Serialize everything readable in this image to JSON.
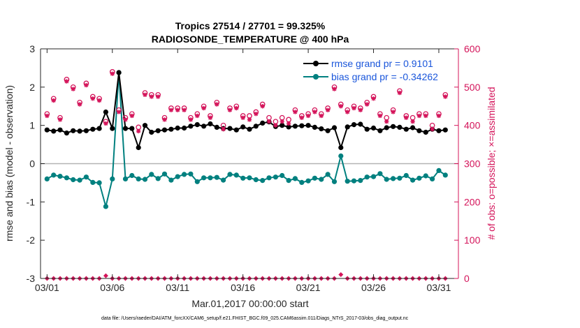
{
  "chart_data": {
    "type": "line",
    "title_line1": "Tropics 27514 / 27701 = 99.325%",
    "title_line2": "RADIOSONDE_TEMPERATURE @ 400 hPa",
    "xlabel": "Mar.01,2017 00:00:00 start",
    "ylabel_left": "rmse and bias (model - observation)",
    "ylabel_right": "# of obs: o=possible; ×=assimilated",
    "footer": "data file: /Users/raeder/DAI/ATM_forcXX/CAM6_setup/f.e21.FHIST_BGC.f09_025.CAM6assim.011/Diags_NTrS_2017-03/obs_diag_output.nc",
    "xlim": [
      0.5,
      32.5
    ],
    "ylim_left": [
      -3,
      3
    ],
    "ylim_right": [
      0,
      600
    ],
    "x_tick_values": [
      1,
      6,
      11,
      16,
      21,
      26,
      31
    ],
    "x_tick_labels": [
      "03/01",
      "03/06",
      "03/11",
      "03/16",
      "03/21",
      "03/26",
      "03/31"
    ],
    "y_left_ticks": [
      "3",
      "2",
      "1",
      "0",
      "-1",
      "-2",
      "-3"
    ],
    "y_left_tick_values": [
      3,
      2,
      1,
      0,
      -1,
      -2,
      -3
    ],
    "y_right_ticks": [
      "600",
      "500",
      "400",
      "300",
      "200",
      "100",
      "0"
    ],
    "y_right_tick_values": [
      600,
      500,
      400,
      300,
      200,
      100,
      0
    ],
    "x_step_days": 0.5,
    "colors": {
      "rmse": "#000000",
      "bias": "#00807f",
      "obs": "#d4145a",
      "right_axis": "#d4145a",
      "legend_text": "#1a56db",
      "zero_line": "#b3b3b3"
    },
    "legend": {
      "position": "top-right",
      "entries": [
        "rmse grand pr = 0.9101",
        "bias grand pr = -0.34262"
      ]
    },
    "series": [
      {
        "name": "rmse",
        "axis": "left",
        "values": [
          0.88,
          0.85,
          0.88,
          0.8,
          0.86,
          0.85,
          0.86,
          0.9,
          0.92,
          1.35,
          0.92,
          2.38,
          0.92,
          0.92,
          0.42,
          1.0,
          0.82,
          0.86,
          0.88,
          0.9,
          0.93,
          0.93,
          0.98,
          1.02,
          0.98,
          1.04,
          0.95,
          0.92,
          0.92,
          0.88,
          0.96,
          0.9,
          0.98,
          1.06,
          1.09,
          0.97,
          1.0,
          0.96,
          0.98,
          0.99,
          1.0,
          0.95,
          0.91,
          0.86,
          0.94,
          0.42,
          0.96,
          1.02,
          1.03,
          0.9,
          0.93,
          0.86,
          0.94,
          0.97,
          0.95,
          0.9,
          0.94,
          0.86,
          0.82,
          0.9,
          0.86,
          0.88
        ]
      },
      {
        "name": "bias",
        "axis": "left",
        "values": [
          -0.4,
          -0.3,
          -0.33,
          -0.37,
          -0.42,
          -0.43,
          -0.35,
          -0.49,
          -0.5,
          -1.12,
          -0.4,
          2.38,
          -0.4,
          -0.31,
          -0.4,
          -0.41,
          -0.28,
          -0.39,
          -0.27,
          -0.43,
          -0.34,
          -0.28,
          -0.27,
          -0.47,
          -0.37,
          -0.37,
          -0.36,
          -0.43,
          -0.28,
          -0.3,
          -0.38,
          -0.37,
          -0.42,
          -0.44,
          -0.37,
          -0.35,
          -0.31,
          -0.44,
          -0.39,
          -0.49,
          -0.45,
          -0.38,
          -0.41,
          -0.28,
          -0.47,
          0.2,
          -0.46,
          -0.45,
          -0.44,
          -0.35,
          -0.34,
          -0.26,
          -0.41,
          -0.39,
          -0.38,
          -0.31,
          -0.43,
          -0.38,
          -0.32,
          -0.4,
          -0.18,
          -0.3
        ]
      },
      {
        "name": "obs_possible",
        "axis": "right",
        "values": [
          430,
          470,
          420,
          520,
          500,
          460,
          510,
          475,
          470,
          410,
          540,
          440,
          420,
          430,
          395,
          485,
          480,
          480,
          420,
          445,
          445,
          445,
          420,
          430,
          450,
          425,
          460,
          400,
          445,
          450,
          425,
          425,
          435,
          455,
          420,
          410,
          420,
          415,
          440,
          425,
          430,
          440,
          430,
          445,
          500,
          455,
          440,
          450,
          445,
          460,
          475,
          430,
          420,
          440,
          490,
          425,
          420,
          430,
          430,
          400,
          430,
          480
        ]
      },
      {
        "name": "obs_assimilated",
        "axis": "right",
        "values": [
          425,
          465,
          415,
          515,
          495,
          455,
          505,
          470,
          465,
          405,
          535,
          435,
          415,
          425,
          385,
          480,
          475,
          475,
          415,
          440,
          440,
          440,
          415,
          425,
          445,
          420,
          455,
          390,
          440,
          445,
          420,
          415,
          430,
          450,
          410,
          400,
          410,
          405,
          435,
          420,
          425,
          435,
          425,
          440,
          495,
          450,
          435,
          445,
          440,
          455,
          470,
          425,
          410,
          435,
          485,
          420,
          410,
          425,
          425,
          390,
          425,
          475
        ]
      },
      {
        "name": "obs_bottom",
        "axis": "right",
        "values": [
          0,
          0,
          0,
          0,
          0,
          0,
          0,
          0,
          0,
          7,
          0,
          0,
          0,
          0,
          0,
          0,
          0,
          0,
          0,
          0,
          0,
          0,
          0,
          0,
          0,
          0,
          0,
          0,
          0,
          0,
          0,
          0,
          0,
          0,
          0,
          0,
          0,
          0,
          0,
          0,
          0,
          0,
          0,
          0,
          0,
          10,
          0,
          0,
          0,
          0,
          0,
          0,
          0,
          0,
          0,
          0,
          0,
          0,
          0,
          0,
          0,
          0
        ]
      }
    ]
  }
}
